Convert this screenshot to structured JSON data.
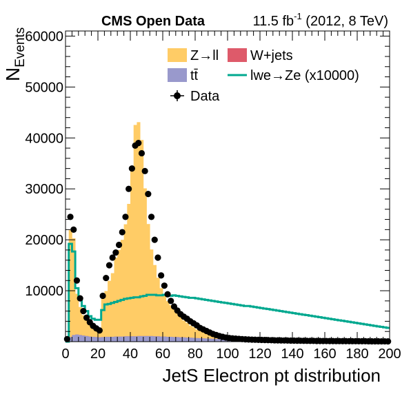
{
  "header": {
    "left": "CMS Open Data",
    "lumi": "11.5 fb",
    "lumi_exp": "-1",
    "energy": " (2012, 8 TeV)"
  },
  "legend": {
    "zll": "Z→ll",
    "wjets": "W+jets",
    "ttbar": "tt̄",
    "signal": "lwe→Ze (x10000)",
    "data": "Data"
  },
  "colors": {
    "zll": "#ffcc66",
    "wjets": "#de5a6a",
    "ttbar": "#9999cc",
    "signal": "#00a88f",
    "data": "#000000"
  },
  "chart_data": {
    "type": "histogram",
    "xlabel": "JetS Electron pt distribution",
    "ylabel": "N",
    "ylabel_sub": "Events",
    "xlim": [
      0,
      200
    ],
    "ylim": [
      0,
      61000
    ],
    "x_ticks": [
      "0",
      "20",
      "40",
      "60",
      "80",
      "100",
      "120",
      "140",
      "160",
      "180",
      "200"
    ],
    "y_ticks": [
      "10000",
      "20000",
      "30000",
      "40000",
      "50000",
      "60000"
    ],
    "bin_width": 2,
    "x": [
      1,
      3,
      5,
      7,
      9,
      11,
      13,
      15,
      17,
      19,
      21,
      23,
      25,
      27,
      29,
      31,
      33,
      35,
      37,
      39,
      41,
      43,
      45,
      47,
      49,
      51,
      53,
      55,
      57,
      59,
      61,
      63,
      65,
      67,
      69,
      71,
      73,
      75,
      77,
      79,
      81,
      83,
      85,
      87,
      89,
      91,
      93,
      95,
      97,
      99,
      101,
      103,
      105,
      107,
      109,
      111,
      113,
      115,
      117,
      119,
      121,
      123,
      125,
      127,
      129,
      131,
      133,
      135,
      137,
      139,
      141,
      143,
      145,
      147,
      149,
      151,
      153,
      155,
      157,
      159,
      161,
      163,
      165,
      167,
      169,
      171,
      173,
      175,
      177,
      179,
      181,
      183,
      185,
      187,
      189,
      191,
      193,
      195,
      197,
      199
    ],
    "series": [
      {
        "name": "Z→ll",
        "kind": "stacked",
        "values": [
          400,
          21000,
          19000,
          8000,
          5500,
          4000,
          3200,
          2500,
          2000,
          1800,
          1500,
          7500,
          9000,
          11000,
          12500,
          15500,
          17000,
          19000,
          22000,
          26000,
          33000,
          41500,
          42000,
          38500,
          29000,
          22000,
          17000,
          14000,
          11500,
          9500,
          8300,
          7000,
          6200,
          5500,
          4700,
          4000,
          3300,
          2900,
          2400,
          2100,
          1700,
          1400,
          1200,
          1000,
          800,
          680,
          580,
          490,
          410,
          350,
          300,
          260,
          220,
          190,
          160,
          140,
          120,
          100,
          90,
          75,
          65,
          55,
          50,
          42,
          38,
          32,
          28,
          25,
          22,
          20,
          18,
          16,
          14,
          12,
          11,
          10,
          9,
          8,
          7,
          6,
          6,
          5,
          5,
          4,
          4,
          3,
          3,
          3,
          2,
          2,
          2,
          2,
          2,
          1,
          1,
          1,
          1,
          1,
          1,
          1
        ]
      },
      {
        "name": "W+jets",
        "kind": "stacked",
        "values": [
          0,
          0,
          0,
          0,
          0,
          0,
          0,
          0,
          0,
          0,
          0,
          0,
          0,
          0,
          0,
          0,
          0,
          0,
          0,
          0,
          0,
          0,
          0,
          0,
          0,
          0,
          0,
          0,
          0,
          0,
          0,
          0,
          0,
          0,
          0,
          0,
          0,
          0,
          0,
          0,
          0,
          0,
          0,
          0,
          0,
          0,
          0,
          0,
          0,
          0,
          0,
          0,
          0,
          0,
          0,
          0,
          0,
          0,
          0,
          0,
          0,
          0,
          0,
          0,
          0,
          0,
          0,
          0,
          0,
          0,
          0,
          0,
          0,
          0,
          0,
          0,
          0,
          0,
          0,
          0,
          0,
          0,
          0,
          0,
          0,
          0,
          0,
          0,
          0,
          0,
          0,
          0,
          0,
          0,
          0,
          0,
          0,
          0,
          0,
          0
        ]
      },
      {
        "name": "tt̄",
        "kind": "stacked",
        "values": [
          600,
          900,
          1300,
          1400,
          1300,
          1200,
          1100,
          1000,
          950,
          900,
          850,
          900,
          950,
          950,
          950,
          1000,
          1000,
          1000,
          1050,
          1050,
          1050,
          1050,
          1100,
          1100,
          1100,
          1100,
          1100,
          1050,
          1050,
          1000,
          1000,
          950,
          950,
          900,
          900,
          850,
          850,
          800,
          780,
          750,
          700,
          680,
          650,
          620,
          600,
          570,
          540,
          510,
          480,
          450,
          420,
          400,
          380,
          360,
          340,
          320,
          300,
          280,
          260,
          240,
          220,
          210,
          200,
          190,
          180,
          170,
          160,
          150,
          140,
          130,
          120,
          110,
          100,
          95,
          90,
          85,
          80,
          75,
          70,
          65,
          60,
          55,
          50,
          45,
          40,
          38,
          35,
          32,
          30,
          28,
          25,
          23,
          20,
          18,
          16,
          14,
          12,
          10,
          8,
          6
        ]
      },
      {
        "name": "lwe→Ze (x10000)",
        "kind": "line",
        "values": [
          0,
          19200,
          17700,
          10500,
          8500,
          7000,
          6000,
          5000,
          4500,
          4300,
          4300,
          6200,
          7300,
          7400,
          7600,
          7800,
          8000,
          8200,
          8400,
          8500,
          8600,
          8700,
          8700,
          8900,
          9000,
          9200,
          9200,
          9200,
          9100,
          9100,
          9200,
          9100,
          9000,
          9100,
          9000,
          8900,
          8800,
          8700,
          8600,
          8600,
          8500,
          8400,
          8300,
          8200,
          8100,
          8000,
          7900,
          7800,
          7700,
          7600,
          7500,
          7400,
          7300,
          7200,
          7100,
          7000,
          7000,
          6900,
          6800,
          6700,
          6600,
          6500,
          6400,
          6300,
          6200,
          6100,
          6000,
          5900,
          5800,
          5700,
          5600,
          5500,
          5400,
          5300,
          5200,
          5100,
          5000,
          4900,
          4800,
          4700,
          4600,
          4500,
          4400,
          4300,
          4200,
          4100,
          4000,
          3900,
          3800,
          3700,
          3600,
          3500,
          3400,
          3300,
          3200,
          3100,
          3000,
          2900,
          2800,
          2700
        ]
      },
      {
        "name": "Data",
        "kind": "points",
        "values": [
          500,
          24500,
          22000,
          12000,
          8500,
          6000,
          4700,
          3800,
          3100,
          2600,
          2200,
          9000,
          12500,
          15000,
          16500,
          17500,
          19000,
          21500,
          24500,
          30000,
          34000,
          38500,
          39000,
          37000,
          33500,
          29000,
          24500,
          20000,
          16500,
          13000,
          11000,
          9300,
          8000,
          6900,
          6100,
          5400,
          4900,
          4500,
          4000,
          3600,
          3200,
          2700,
          2400,
          2100,
          1800,
          1500,
          1300,
          1100,
          950,
          800,
          720,
          650,
          600,
          550,
          500,
          460,
          420,
          400,
          380,
          360,
          340,
          320,
          300,
          280,
          260,
          250,
          240,
          230,
          220,
          210,
          200,
          190,
          180,
          170,
          160,
          150,
          150,
          140,
          140,
          130,
          130,
          120,
          120,
          110,
          110,
          100,
          100,
          95,
          90,
          90,
          85,
          80,
          80,
          75,
          70,
          70,
          65,
          60,
          60,
          55
        ]
      }
    ]
  }
}
